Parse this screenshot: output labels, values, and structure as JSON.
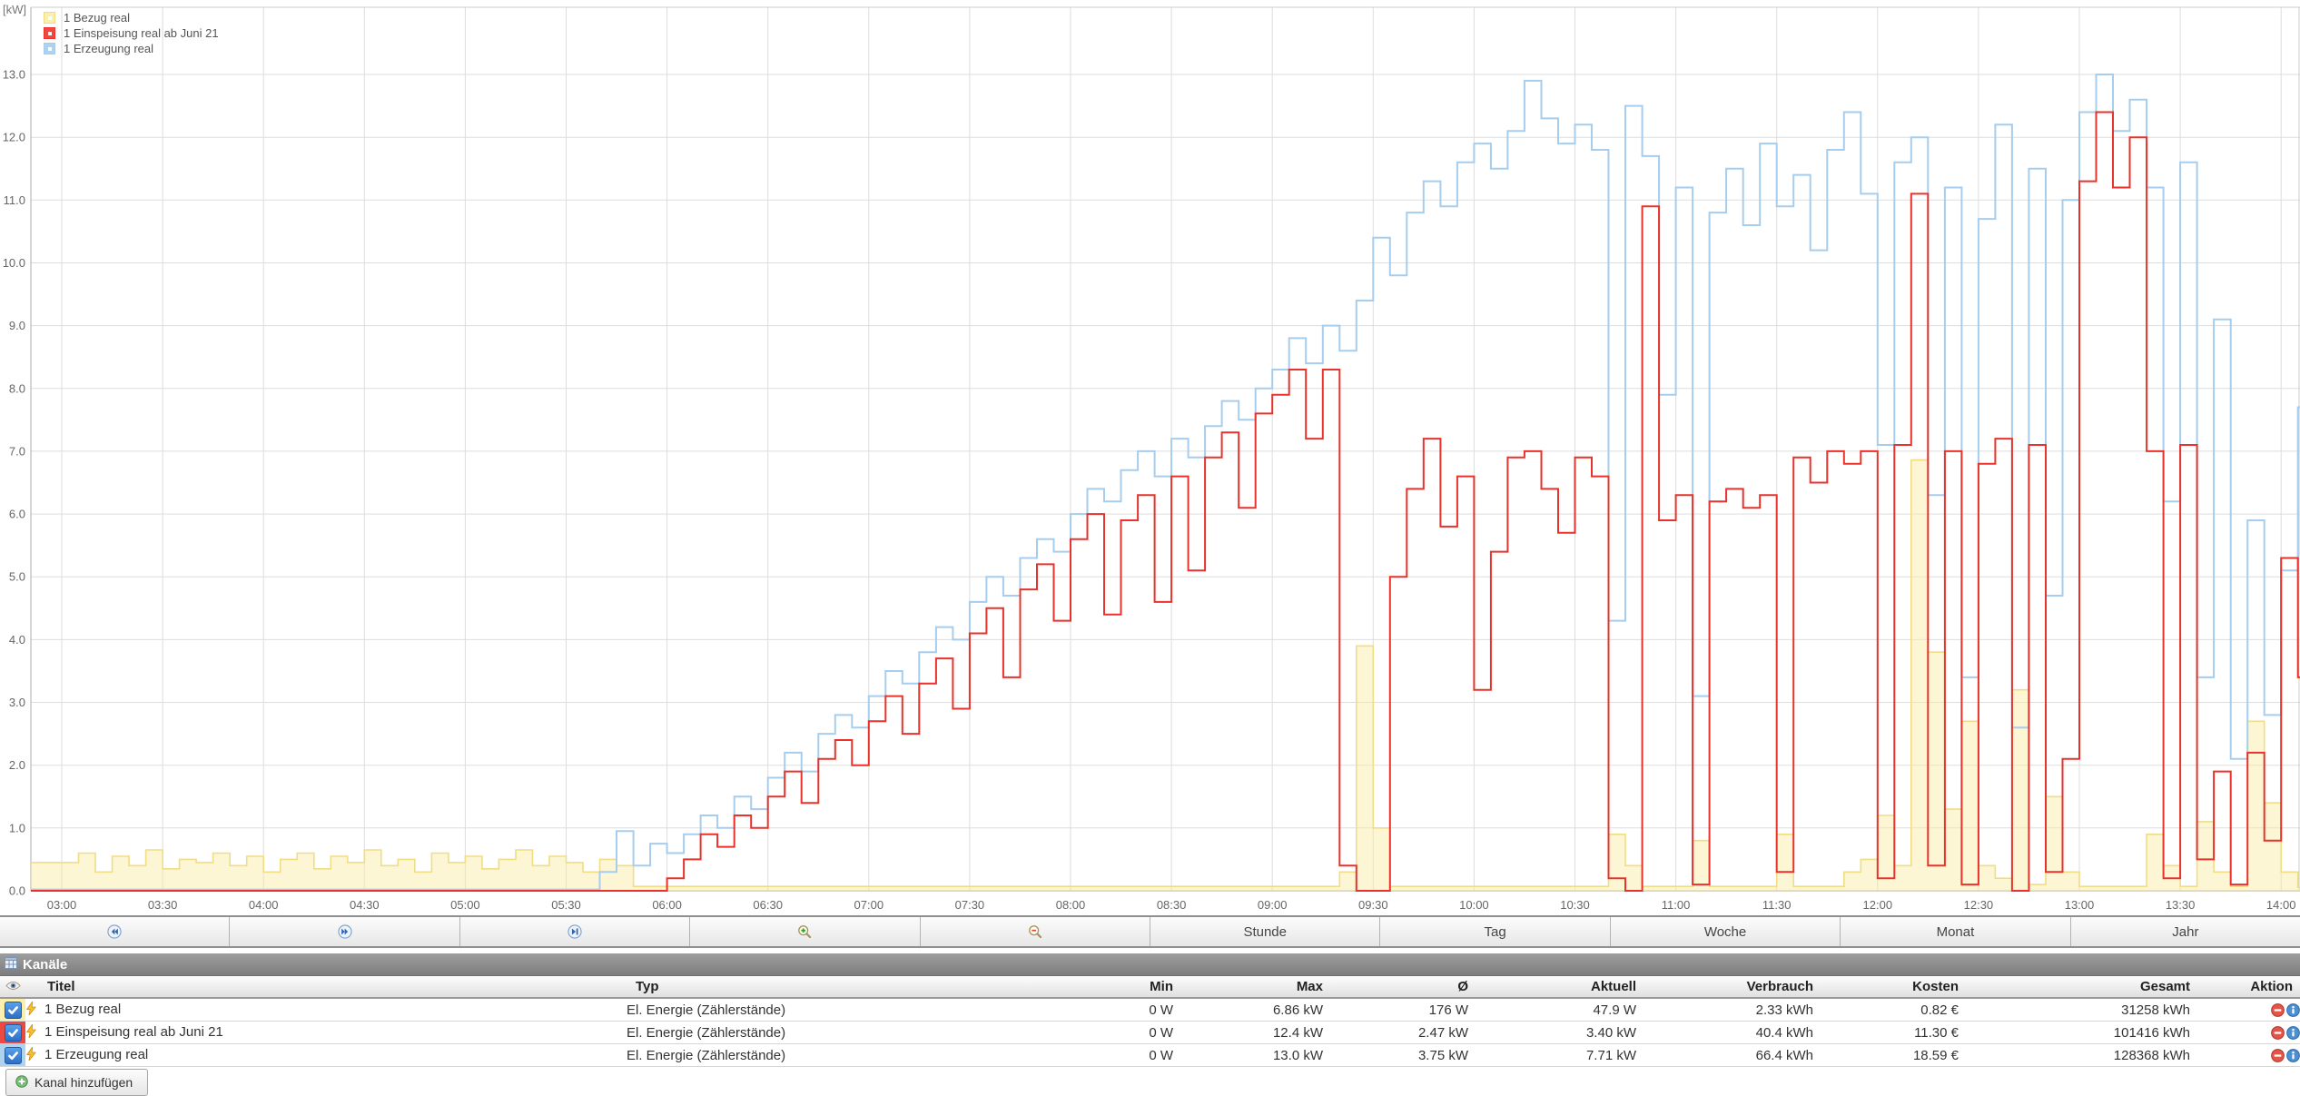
{
  "chart_data": {
    "type": "line",
    "step": true,
    "axis_unit": "[kW]",
    "ylim": [
      0,
      13
    ],
    "y_tick_step": 1,
    "grid": true,
    "legend_position": "top-left",
    "x_start_min": 180,
    "x_step_min": 5,
    "x_tick_interval_min": 30,
    "x_tick_labels": [
      "03:00",
      "03:30",
      "04:00",
      "04:30",
      "05:00",
      "05:30",
      "06:00",
      "06:30",
      "07:00",
      "07:30",
      "08:00",
      "08:30",
      "09:00",
      "09:30",
      "10:00",
      "10:30",
      "11:00",
      "11:30",
      "12:00",
      "12:30",
      "13:00",
      "13:30",
      "14:00"
    ],
    "series": [
      {
        "name": "1 Bezug real",
        "color": "#f0dd84",
        "legend_fill": "#f9efae",
        "values": [
          0.45,
          0.6,
          0.3,
          0.55,
          0.4,
          0.65,
          0.35,
          0.5,
          0.45,
          0.6,
          0.4,
          0.55,
          0.3,
          0.5,
          0.6,
          0.35,
          0.55,
          0.45,
          0.65,
          0.4,
          0.5,
          0.3,
          0.6,
          0.45,
          0.55,
          0.35,
          0.5,
          0.65,
          0.4,
          0.55,
          0.45,
          0.3,
          0.5,
          0.4,
          0.07,
          0.07,
          0.07,
          0.07,
          0.07,
          0.07,
          0.07,
          0.07,
          0.07,
          0.07,
          0.07,
          0.07,
          0.07,
          0.07,
          0.07,
          0.07,
          0.07,
          0.07,
          0.07,
          0.07,
          0.07,
          0.07,
          0.07,
          0.07,
          0.07,
          0.07,
          0.07,
          0.07,
          0.07,
          0.07,
          0.07,
          0.07,
          0.07,
          0.07,
          0.07,
          0.07,
          0.07,
          0.07,
          0.07,
          0.07,
          0.07,
          0.07,
          0.3,
          3.9,
          1.0,
          0.07,
          0.07,
          0.07,
          0.07,
          0.07,
          0.07,
          0.07,
          0.07,
          0.07,
          0.07,
          0.07,
          0.07,
          0.07,
          0.9,
          0.4,
          0.07,
          0.07,
          0.07,
          0.8,
          0.07,
          0.07,
          0.07,
          0.07,
          0.9,
          0.07,
          0.07,
          0.07,
          0.3,
          0.5,
          1.2,
          0.4,
          6.86,
          3.8,
          1.3,
          2.7,
          0.4,
          0.2,
          3.2,
          0.1,
          1.5,
          0.3,
          0.07,
          0.07,
          0.07,
          0.07,
          0.9,
          0.4,
          0.07,
          1.1,
          0.3,
          0.07,
          2.7,
          1.4,
          0.3,
          0.05
        ]
      },
      {
        "name": "1 Einspeisung real ab Juni 21",
        "color": "#e8322b",
        "legend_fill": "#ea4a42",
        "values": [
          0,
          0,
          0,
          0,
          0,
          0,
          0,
          0,
          0,
          0,
          0,
          0,
          0,
          0,
          0,
          0,
          0,
          0,
          0,
          0,
          0,
          0,
          0,
          0,
          0,
          0,
          0,
          0,
          0,
          0,
          0,
          0,
          0,
          0,
          0,
          0,
          0.2,
          0.5,
          0.9,
          0.7,
          1.2,
          1.0,
          1.5,
          1.9,
          1.4,
          2.1,
          2.4,
          2.0,
          2.7,
          3.1,
          2.5,
          3.3,
          3.7,
          2.9,
          4.1,
          4.5,
          3.4,
          4.8,
          5.2,
          4.3,
          5.6,
          6.0,
          4.4,
          5.9,
          6.3,
          4.6,
          6.6,
          5.1,
          6.9,
          7.3,
          6.1,
          7.6,
          7.9,
          8.3,
          7.2,
          8.3,
          0.4,
          0,
          0,
          5.0,
          6.4,
          7.2,
          5.8,
          6.6,
          3.2,
          5.4,
          6.9,
          7.0,
          6.4,
          5.7,
          6.9,
          6.6,
          0.2,
          0,
          10.9,
          5.9,
          6.3,
          0.1,
          6.2,
          6.4,
          6.1,
          6.3,
          0.3,
          6.9,
          6.5,
          7.0,
          6.8,
          7.0,
          0.2,
          7.1,
          11.1,
          0.4,
          7.0,
          0.1,
          6.8,
          7.2,
          0,
          7.1,
          0.3,
          2.1,
          11.3,
          12.4,
          11.2,
          12.0,
          7.0,
          0.2,
          7.1,
          0.5,
          1.9,
          0.1,
          2.2,
          0.8,
          5.3,
          3.4
        ]
      },
      {
        "name": "1 Erzeugung real",
        "color": "#a6cded",
        "legend_fill": "#aed3f0",
        "values": [
          0.02,
          0.02,
          0.02,
          0.02,
          0.02,
          0.02,
          0.02,
          0.02,
          0.02,
          0.02,
          0.02,
          0.02,
          0.02,
          0.02,
          0.02,
          0.02,
          0.02,
          0.02,
          0.02,
          0.02,
          0.02,
          0.02,
          0.02,
          0.02,
          0.02,
          0.02,
          0.02,
          0.02,
          0.02,
          0.02,
          0.02,
          0.02,
          0.3,
          0.95,
          0.4,
          0.75,
          0.6,
          0.9,
          1.2,
          1.0,
          1.5,
          1.3,
          1.8,
          2.2,
          1.9,
          2.5,
          2.8,
          2.6,
          3.1,
          3.5,
          3.3,
          3.8,
          4.2,
          4.0,
          4.6,
          5.0,
          4.7,
          5.3,
          5.6,
          5.4,
          6.0,
          6.4,
          6.2,
          6.7,
          7.0,
          6.6,
          7.2,
          6.9,
          7.4,
          7.8,
          7.5,
          8.0,
          8.3,
          8.8,
          8.4,
          9.0,
          8.6,
          9.4,
          10.4,
          9.8,
          10.8,
          11.3,
          10.9,
          11.6,
          11.9,
          11.5,
          12.1,
          12.9,
          12.3,
          11.9,
          12.2,
          11.8,
          4.3,
          12.5,
          11.7,
          7.9,
          11.2,
          3.1,
          10.8,
          11.5,
          10.6,
          11.9,
          10.9,
          11.4,
          10.2,
          11.8,
          12.4,
          11.1,
          7.1,
          11.6,
          12.0,
          6.3,
          11.2,
          3.4,
          10.7,
          12.2,
          2.6,
          11.5,
          4.7,
          11.0,
          12.4,
          13.0,
          12.1,
          12.6,
          11.2,
          6.2,
          11.6,
          3.4,
          9.1,
          2.1,
          5.9,
          2.8,
          5.1,
          7.7
        ]
      }
    ]
  },
  "toolbar": {
    "buttons": [
      {
        "name": "move-back-button",
        "icon": "rewind-icon",
        "label": ""
      },
      {
        "name": "move-forward-button",
        "icon": "fast-forward-icon",
        "label": ""
      },
      {
        "name": "jump-to-now-button",
        "icon": "skip-to-end-icon",
        "label": ""
      },
      {
        "name": "zoom-in-button",
        "icon": "zoom-in-icon",
        "label": ""
      },
      {
        "name": "zoom-out-button",
        "icon": "zoom-out-icon",
        "label": ""
      },
      {
        "name": "range-hour-button",
        "icon": "",
        "label": "Stunde"
      },
      {
        "name": "range-day-button",
        "icon": "",
        "label": "Tag"
      },
      {
        "name": "range-week-button",
        "icon": "",
        "label": "Woche"
      },
      {
        "name": "range-month-button",
        "icon": "",
        "label": "Monat"
      },
      {
        "name": "range-year-button",
        "icon": "",
        "label": "Jahr"
      }
    ]
  },
  "panel": {
    "title": "Kanäle"
  },
  "table": {
    "columns": [
      "",
      "Titel",
      "Typ",
      "Min",
      "Max",
      "Ø",
      "Aktuell",
      "Verbrauch",
      "Kosten",
      "Gesamt",
      "Aktion"
    ],
    "rows": [
      {
        "checked": true,
        "color": "#f9efae",
        "title": "1 Bezug real",
        "typ": "El. Energie (Zählerstände)",
        "min": "0 W",
        "max": "6.86 kW",
        "avg": "176 W",
        "aktuell": "47.9 W",
        "verbrauch": "2.33 kWh",
        "kosten": "0.82 €",
        "gesamt": "31258 kWh"
      },
      {
        "checked": true,
        "color": "#ea4a42",
        "title": "1 Einspeisung real ab Juni 21",
        "typ": "El. Energie (Zählerstände)",
        "min": "0 W",
        "max": "12.4 kW",
        "avg": "2.47 kW",
        "aktuell": "3.40 kW",
        "verbrauch": "40.4 kWh",
        "kosten": "11.30 €",
        "gesamt": "101416 kWh"
      },
      {
        "checked": true,
        "color": "#aed3f0",
        "title": "1 Erzeugung real",
        "typ": "El. Energie (Zählerstände)",
        "min": "0 W",
        "max": "13.0 kW",
        "avg": "3.75 kW",
        "aktuell": "7.71 kW",
        "verbrauch": "66.4 kWh",
        "kosten": "18.59 €",
        "gesamt": "128368 kWh"
      }
    ]
  },
  "add_button": {
    "label": "Kanal hinzufügen"
  }
}
